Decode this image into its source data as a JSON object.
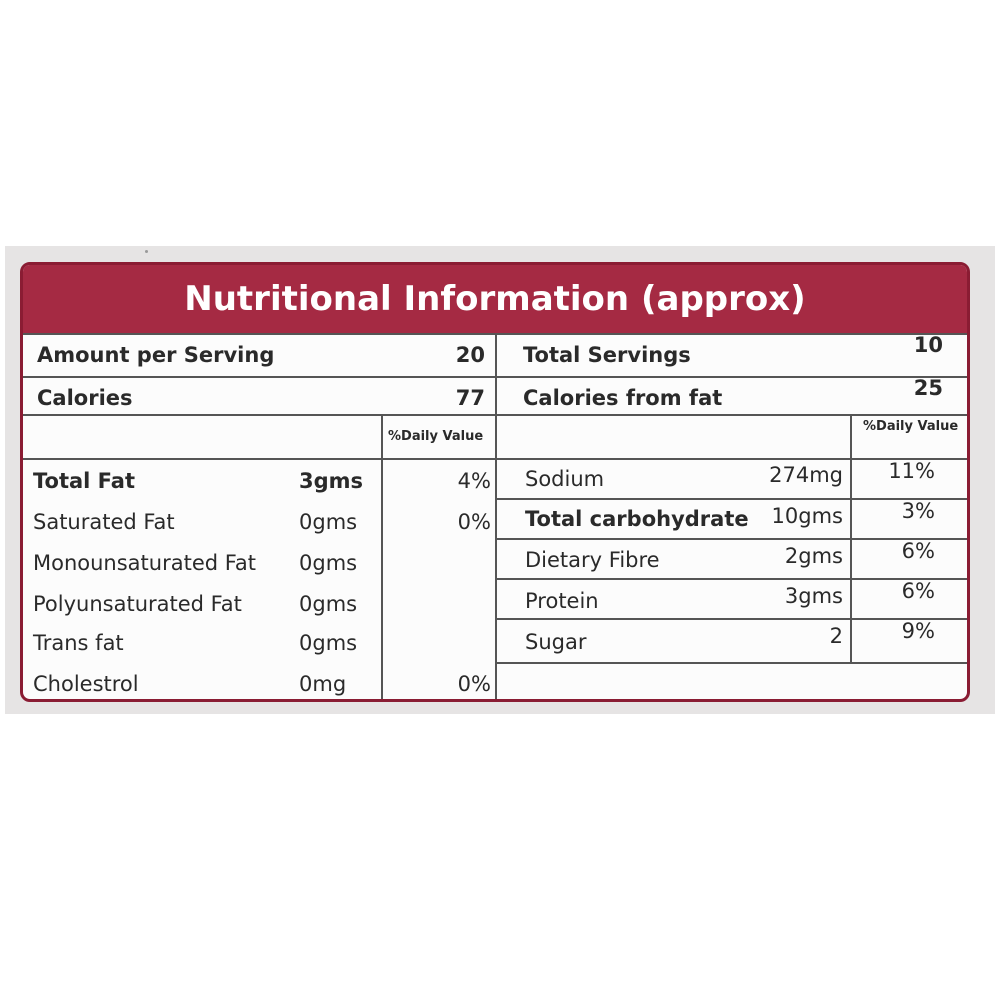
{
  "title": "Nutritional Information (approx)",
  "summary": {
    "amount_per_serving_label": "Amount per Serving",
    "amount_per_serving_value": "20",
    "calories_label": "Calories",
    "calories_value": "77",
    "total_servings_label": "Total Servings",
    "total_servings_value": "10",
    "calories_from_fat_label": "Calories from fat",
    "calories_from_fat_value": "25"
  },
  "daily_value_header": "%Daily Value",
  "left_rows": [
    {
      "name": "Total Fat",
      "amount": "3gms",
      "dv": "4%"
    },
    {
      "name": "Saturated Fat",
      "amount": "0gms",
      "dv": "0%"
    },
    {
      "name": "Monounsaturated Fat",
      "amount": "0gms",
      "dv": ""
    },
    {
      "name": "Polyunsaturated Fat",
      "amount": "0gms",
      "dv": ""
    },
    {
      "name": "Trans fat",
      "amount": "0gms",
      "dv": ""
    },
    {
      "name": "Cholestrol",
      "amount": "0mg",
      "dv": "0%"
    }
  ],
  "right_rows": [
    {
      "name": "Sodium",
      "amount": "274mg",
      "dv": "11%"
    },
    {
      "name": "Total carbohydrate",
      "amount": "10gms",
      "dv": "3%"
    },
    {
      "name": "Dietary Fibre",
      "amount": "2gms",
      "dv": "6%"
    },
    {
      "name": "Protein",
      "amount": "3gms",
      "dv": "6%"
    },
    {
      "name": "Sugar",
      "amount": "2",
      "dv": "9%"
    }
  ]
}
